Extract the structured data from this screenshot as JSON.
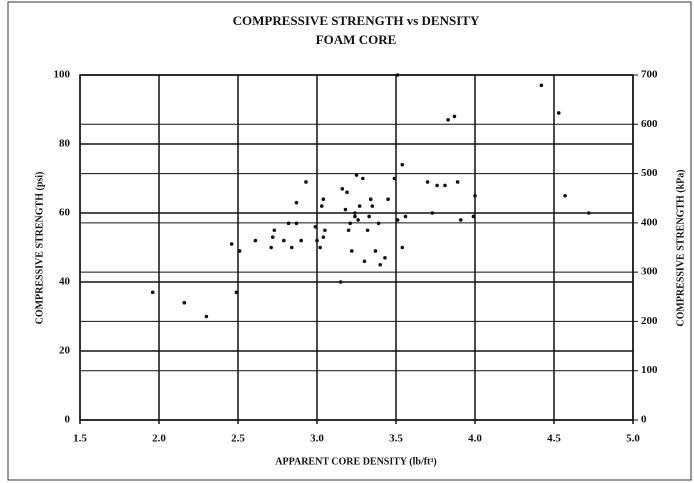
{
  "chart_data": {
    "type": "scatter",
    "title": "COMPRESSIVE STRENGTH vs DENSITY",
    "subtitle": "FOAM CORE",
    "x_label": "APPARENT CORE DENSITY (lb/ft³)",
    "y_label": "COMPRESSIVE STRENGTH (psi)",
    "y2_label": "COMPRESSIVE STRENGTH (kPa)",
    "color": "#111111",
    "grid": true,
    "xlim": [
      1.5,
      5.0
    ],
    "xticks": [
      {
        "value": 1.5,
        "label": "1.5"
      },
      {
        "value": 2,
        "label": "2.0"
      },
      {
        "value": 2.5,
        "label": "2.5"
      },
      {
        "value": 3,
        "label": "3.0"
      },
      {
        "value": 3.5,
        "label": "3.5"
      },
      {
        "value": 4,
        "label": "4.0"
      },
      {
        "value": 4.5,
        "label": "4.5"
      },
      {
        "value": 5,
        "label": "5.0"
      }
    ],
    "ylim": [
      0,
      100
    ],
    "yticks": [
      0,
      20,
      40,
      60,
      80,
      100
    ],
    "y2lim": [
      0,
      700
    ],
    "y2ticks": [
      0,
      100,
      200,
      300,
      400,
      500,
      600,
      700
    ],
    "x": [
      1.96,
      2.16,
      2.3,
      2.49,
      2.46,
      2.51,
      2.61,
      2.71,
      2.72,
      2.73,
      2.79,
      2.82,
      2.84,
      2.87,
      2.87,
      2.9,
      2.93,
      2.99,
      3.0,
      3.02,
      3.03,
      3.04,
      3.04,
      3.05,
      3.15,
      3.16,
      3.18,
      3.19,
      3.2,
      3.21,
      3.22,
      3.24,
      3.24,
      3.25,
      3.26,
      3.27,
      3.29,
      3.3,
      3.32,
      3.33,
      3.34,
      3.35,
      3.37,
      3.39,
      3.4,
      3.43,
      3.45,
      3.49,
      3.51,
      3.51,
      3.54,
      3.54,
      3.56,
      3.7,
      3.73,
      3.76,
      3.81,
      3.83,
      3.87,
      3.89,
      3.91,
      3.99,
      4.0,
      4.42,
      4.53,
      4.57,
      4.72
    ],
    "values": [
      37,
      34,
      30,
      37,
      51,
      49,
      52,
      50,
      53,
      55,
      52,
      57,
      50,
      57,
      63,
      52,
      69,
      56,
      52,
      50,
      62,
      64,
      53,
      55,
      40,
      67,
      61,
      66,
      55,
      57,
      49,
      59,
      60,
      71,
      58,
      62,
      70,
      46,
      55,
      59,
      64,
      62,
      49,
      57,
      45,
      47,
      64,
      70,
      58,
      100,
      74,
      50,
      59,
      69,
      60,
      68,
      68,
      87,
      88,
      69,
      58,
      59,
      65,
      97,
      89,
      65,
      60
    ]
  }
}
